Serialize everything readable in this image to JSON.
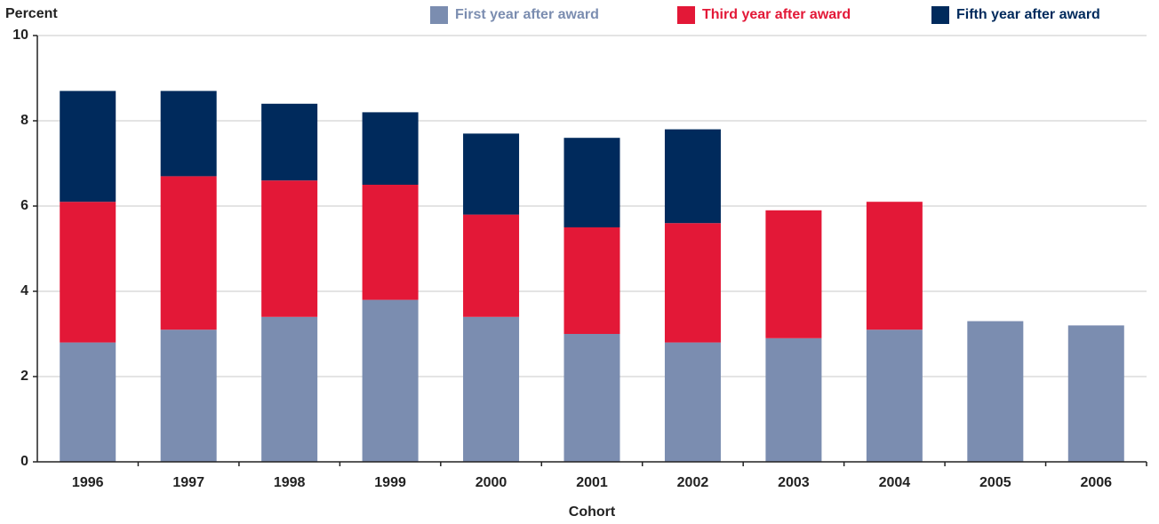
{
  "chart_data": {
    "type": "stacked_bar",
    "y_label": "Percent",
    "x_label": "Cohort",
    "categories": [
      "1996",
      "1997",
      "1998",
      "1999",
      "2000",
      "2001",
      "2002",
      "2003",
      "2004",
      "2005",
      "2006"
    ],
    "series": [
      {
        "name": "First year after award",
        "color": "#7b8db0",
        "values": [
          2.8,
          3.1,
          3.4,
          3.8,
          3.4,
          3.0,
          2.8,
          2.9,
          3.1,
          3.3,
          3.2
        ]
      },
      {
        "name": "Third year after award",
        "color": "#e31837",
        "values": [
          3.3,
          3.6,
          3.2,
          2.7,
          2.4,
          2.5,
          2.8,
          3.0,
          3.0,
          null,
          null
        ]
      },
      {
        "name": "Fifth year after award",
        "color": "#002a5c",
        "values": [
          2.6,
          2.0,
          1.8,
          1.7,
          1.9,
          2.1,
          2.2,
          null,
          null,
          null,
          null
        ]
      }
    ],
    "ylim": [
      0,
      10
    ],
    "yticks": [
      0,
      2,
      4,
      6,
      8,
      10
    ],
    "grid": true,
    "legend": "top-right"
  }
}
